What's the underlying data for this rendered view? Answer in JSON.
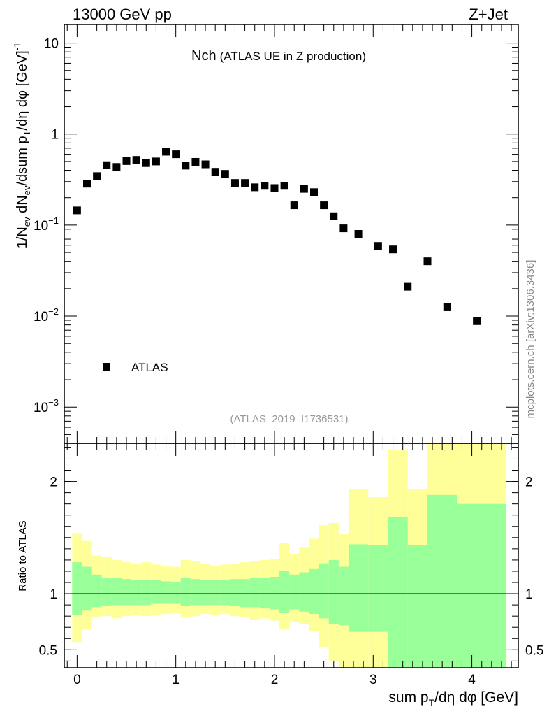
{
  "header": {
    "energy_label": "13000 GeV pp",
    "process_label": "Z+Jet"
  },
  "side_label": "mcplots.cern.ch [arXiv:1306.3436]",
  "chart_data": [
    {
      "type": "scatter",
      "panel": "main",
      "title_main": "Nch",
      "title_sub": "(ATLAS UE in Z production)",
      "analysis_id": "(ATLAS_2019_I1736531)",
      "ylabel": "1/N_ev dN_ev/dsum p_T/dη dφ [GeV]^-1",
      "yscale": "log",
      "xlim": [
        -0.13,
        4.47
      ],
      "ylim": [
        0.0004,
        16
      ],
      "y_ticks": [
        {
          "value": 0.001,
          "base": "10",
          "exp": "−3"
        },
        {
          "value": 0.01,
          "base": "10",
          "exp": "−2"
        },
        {
          "value": 0.1,
          "base": "10",
          "exp": "−1"
        },
        {
          "value": 1,
          "base": "1",
          "exp": ""
        },
        {
          "value": 10,
          "base": "10",
          "exp": ""
        }
      ],
      "legend": {
        "entries": [
          "ATLAS"
        ],
        "position": "lower-left"
      },
      "series": [
        {
          "name": "ATLAS",
          "marker": "square",
          "points": [
            [
              0.0,
              0.145
            ],
            [
              0.1,
              0.285
            ],
            [
              0.2,
              0.345
            ],
            [
              0.3,
              0.455
            ],
            [
              0.4,
              0.435
            ],
            [
              0.5,
              0.505
            ],
            [
              0.6,
              0.52
            ],
            [
              0.7,
              0.48
            ],
            [
              0.8,
              0.5
            ],
            [
              0.9,
              0.64
            ],
            [
              1.0,
              0.6
            ],
            [
              1.1,
              0.45
            ],
            [
              1.2,
              0.495
            ],
            [
              1.3,
              0.465
            ],
            [
              1.4,
              0.385
            ],
            [
              1.5,
              0.365
            ],
            [
              1.6,
              0.29
            ],
            [
              1.7,
              0.29
            ],
            [
              1.8,
              0.26
            ],
            [
              1.9,
              0.27
            ],
            [
              2.0,
              0.255
            ],
            [
              2.1,
              0.27
            ],
            [
              2.2,
              0.165
            ],
            [
              2.3,
              0.25
            ],
            [
              2.4,
              0.23
            ],
            [
              2.5,
              0.165
            ],
            [
              2.6,
              0.125
            ],
            [
              2.7,
              0.092
            ],
            [
              2.85,
              0.08
            ],
            [
              3.05,
              0.059
            ],
            [
              3.2,
              0.054
            ],
            [
              3.35,
              0.021
            ],
            [
              3.55,
              0.04
            ],
            [
              3.75,
              0.0125
            ],
            [
              4.05,
              0.0088
            ]
          ]
        }
      ]
    },
    {
      "type": "area",
      "panel": "ratio",
      "ylabel": "Ratio to ATLAS",
      "xlabel": "sum p_T/dη dφ [GeV]",
      "xlim": [
        -0.13,
        4.47
      ],
      "ylim": [
        0.34,
        2.34
      ],
      "x_ticks": [
        0,
        1,
        2,
        3,
        4
      ],
      "y_ticks": [
        0.5,
        1,
        2
      ],
      "reference_line": 1,
      "bands": [
        {
          "name": "total uncertainty",
          "color": "#ffff99",
          "bins": [
            [
              -0.05,
              0.05,
              0.57,
              1.54
            ],
            [
              0.05,
              0.15,
              0.68,
              1.47
            ],
            [
              0.15,
              0.25,
              0.79,
              1.34
            ],
            [
              0.25,
              0.35,
              0.8,
              1.33
            ],
            [
              0.35,
              0.45,
              0.78,
              1.3
            ],
            [
              0.45,
              0.55,
              0.8,
              1.28
            ],
            [
              0.55,
              0.65,
              0.81,
              1.27
            ],
            [
              0.65,
              0.75,
              0.8,
              1.28
            ],
            [
              0.75,
              0.85,
              0.81,
              1.26
            ],
            [
              0.85,
              0.95,
              0.82,
              1.25
            ],
            [
              0.95,
              1.05,
              0.83,
              1.24
            ],
            [
              1.05,
              1.15,
              0.79,
              1.3
            ],
            [
              1.15,
              1.25,
              0.8,
              1.29
            ],
            [
              1.25,
              1.35,
              0.82,
              1.27
            ],
            [
              1.35,
              1.45,
              0.81,
              1.25
            ],
            [
              1.45,
              1.55,
              0.82,
              1.26
            ],
            [
              1.55,
              1.65,
              0.8,
              1.27
            ],
            [
              1.65,
              1.75,
              0.79,
              1.28
            ],
            [
              1.75,
              1.85,
              0.77,
              1.29
            ],
            [
              1.85,
              1.95,
              0.78,
              1.3
            ],
            [
              1.95,
              2.05,
              0.76,
              1.31
            ],
            [
              2.05,
              2.15,
              0.68,
              1.45
            ],
            [
              2.15,
              2.25,
              0.75,
              1.35
            ],
            [
              2.25,
              2.35,
              0.73,
              1.41
            ],
            [
              2.35,
              2.45,
              0.67,
              1.49
            ],
            [
              2.45,
              2.55,
              0.52,
              1.61
            ],
            [
              2.55,
              2.65,
              0.4,
              1.63
            ],
            [
              2.65,
              2.75,
              0.34,
              1.53
            ],
            [
              2.75,
              2.95,
              0.34,
              1.93
            ],
            [
              2.95,
              3.15,
              0.34,
              1.86
            ],
            [
              3.15,
              3.35,
              0.34,
              2.28
            ],
            [
              3.35,
              3.55,
              0.66,
              1.93
            ],
            [
              3.55,
              3.85,
              0.34,
              2.34
            ],
            [
              3.85,
              4.35,
              0.34,
              2.34
            ]
          ]
        },
        {
          "name": "stat uncertainty",
          "color": "#99ff99",
          "bins": [
            [
              -0.05,
              0.05,
              0.81,
              1.28
            ],
            [
              0.05,
              0.15,
              0.85,
              1.24
            ],
            [
              0.15,
              0.25,
              0.88,
              1.17
            ],
            [
              0.25,
              0.35,
              0.89,
              1.14
            ],
            [
              0.35,
              0.45,
              0.9,
              1.14
            ],
            [
              0.45,
              0.55,
              0.9,
              1.13
            ],
            [
              0.55,
              0.65,
              0.9,
              1.12
            ],
            [
              0.65,
              0.75,
              0.9,
              1.12
            ],
            [
              0.75,
              0.85,
              0.91,
              1.12
            ],
            [
              0.85,
              0.95,
              0.91,
              1.11
            ],
            [
              0.95,
              1.05,
              0.91,
              1.1
            ],
            [
              1.05,
              1.15,
              0.89,
              1.14
            ],
            [
              1.15,
              1.25,
              0.9,
              1.13
            ],
            [
              1.25,
              1.35,
              0.9,
              1.12
            ],
            [
              1.35,
              1.45,
              0.9,
              1.12
            ],
            [
              1.45,
              1.55,
              0.9,
              1.12
            ],
            [
              1.55,
              1.65,
              0.89,
              1.13
            ],
            [
              1.65,
              1.75,
              0.88,
              1.13
            ],
            [
              1.75,
              1.85,
              0.88,
              1.14
            ],
            [
              1.85,
              1.95,
              0.87,
              1.14
            ],
            [
              1.95,
              2.05,
              0.86,
              1.15
            ],
            [
              2.05,
              2.15,
              0.83,
              1.2
            ],
            [
              2.15,
              2.25,
              0.86,
              1.17
            ],
            [
              2.25,
              2.35,
              0.84,
              1.19
            ],
            [
              2.35,
              2.45,
              0.82,
              1.22
            ],
            [
              2.45,
              2.55,
              0.78,
              1.27
            ],
            [
              2.55,
              2.65,
              0.73,
              1.3
            ],
            [
              2.65,
              2.75,
              0.72,
              1.24
            ],
            [
              2.75,
              2.95,
              0.66,
              1.44
            ],
            [
              2.95,
              3.15,
              0.66,
              1.43
            ],
            [
              3.15,
              3.35,
              0.34,
              1.68
            ],
            [
              3.35,
              3.55,
              0.34,
              1.43
            ],
            [
              3.55,
              3.85,
              0.34,
              1.88
            ],
            [
              3.85,
              4.35,
              0.34,
              1.8
            ]
          ]
        }
      ]
    }
  ]
}
